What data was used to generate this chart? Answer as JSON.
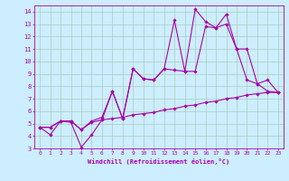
{
  "xlabel": "Windchill (Refroidissement éolien,°C)",
  "background_color": "#cceeff",
  "grid_color": "#aaccbb",
  "line_color": "#aa00aa",
  "xlim": [
    -0.5,
    23.5
  ],
  "ylim": [
    3,
    14.5
  ],
  "yticks": [
    3,
    4,
    5,
    6,
    7,
    8,
    9,
    10,
    11,
    12,
    13,
    14
  ],
  "xticks": [
    0,
    1,
    2,
    3,
    4,
    5,
    6,
    7,
    8,
    9,
    10,
    11,
    12,
    13,
    14,
    15,
    16,
    17,
    18,
    19,
    20,
    21,
    22,
    23
  ],
  "series": [
    {
      "x": [
        0,
        1,
        2,
        3,
        4,
        5,
        6,
        7,
        8,
        9,
        10,
        11,
        12,
        13,
        14,
        15,
        16,
        17,
        18,
        19,
        20,
        21,
        22,
        23
      ],
      "y": [
        4.7,
        4.7,
        5.2,
        5.2,
        4.5,
        5.1,
        5.3,
        5.4,
        5.5,
        5.7,
        5.8,
        5.9,
        6.1,
        6.2,
        6.4,
        6.5,
        6.7,
        6.8,
        7.0,
        7.1,
        7.3,
        7.4,
        7.5,
        7.5
      ]
    },
    {
      "x": [
        0,
        1,
        2,
        3,
        4,
        5,
        6,
        7,
        8,
        9,
        10,
        11,
        12,
        13,
        14,
        15,
        16,
        17,
        18,
        19,
        20,
        21,
        22,
        23
      ],
      "y": [
        4.7,
        4.1,
        5.2,
        5.1,
        3.1,
        4.1,
        5.3,
        7.6,
        5.4,
        9.4,
        8.6,
        8.5,
        9.4,
        9.3,
        9.2,
        9.2,
        12.8,
        12.7,
        13.0,
        11.0,
        8.5,
        8.2,
        7.6,
        7.5
      ]
    },
    {
      "x": [
        0,
        1,
        2,
        3,
        4,
        5,
        6,
        7,
        8,
        9,
        10,
        11,
        12,
        13,
        14,
        15,
        16,
        17,
        18,
        19,
        20,
        21,
        22,
        23
      ],
      "y": [
        4.7,
        4.7,
        5.2,
        5.2,
        4.5,
        5.2,
        5.5,
        7.6,
        5.4,
        9.4,
        8.6,
        8.5,
        9.4,
        13.3,
        9.2,
        14.2,
        13.2,
        12.7,
        13.8,
        11.0,
        11.0,
        8.2,
        8.5,
        7.5
      ]
    }
  ]
}
